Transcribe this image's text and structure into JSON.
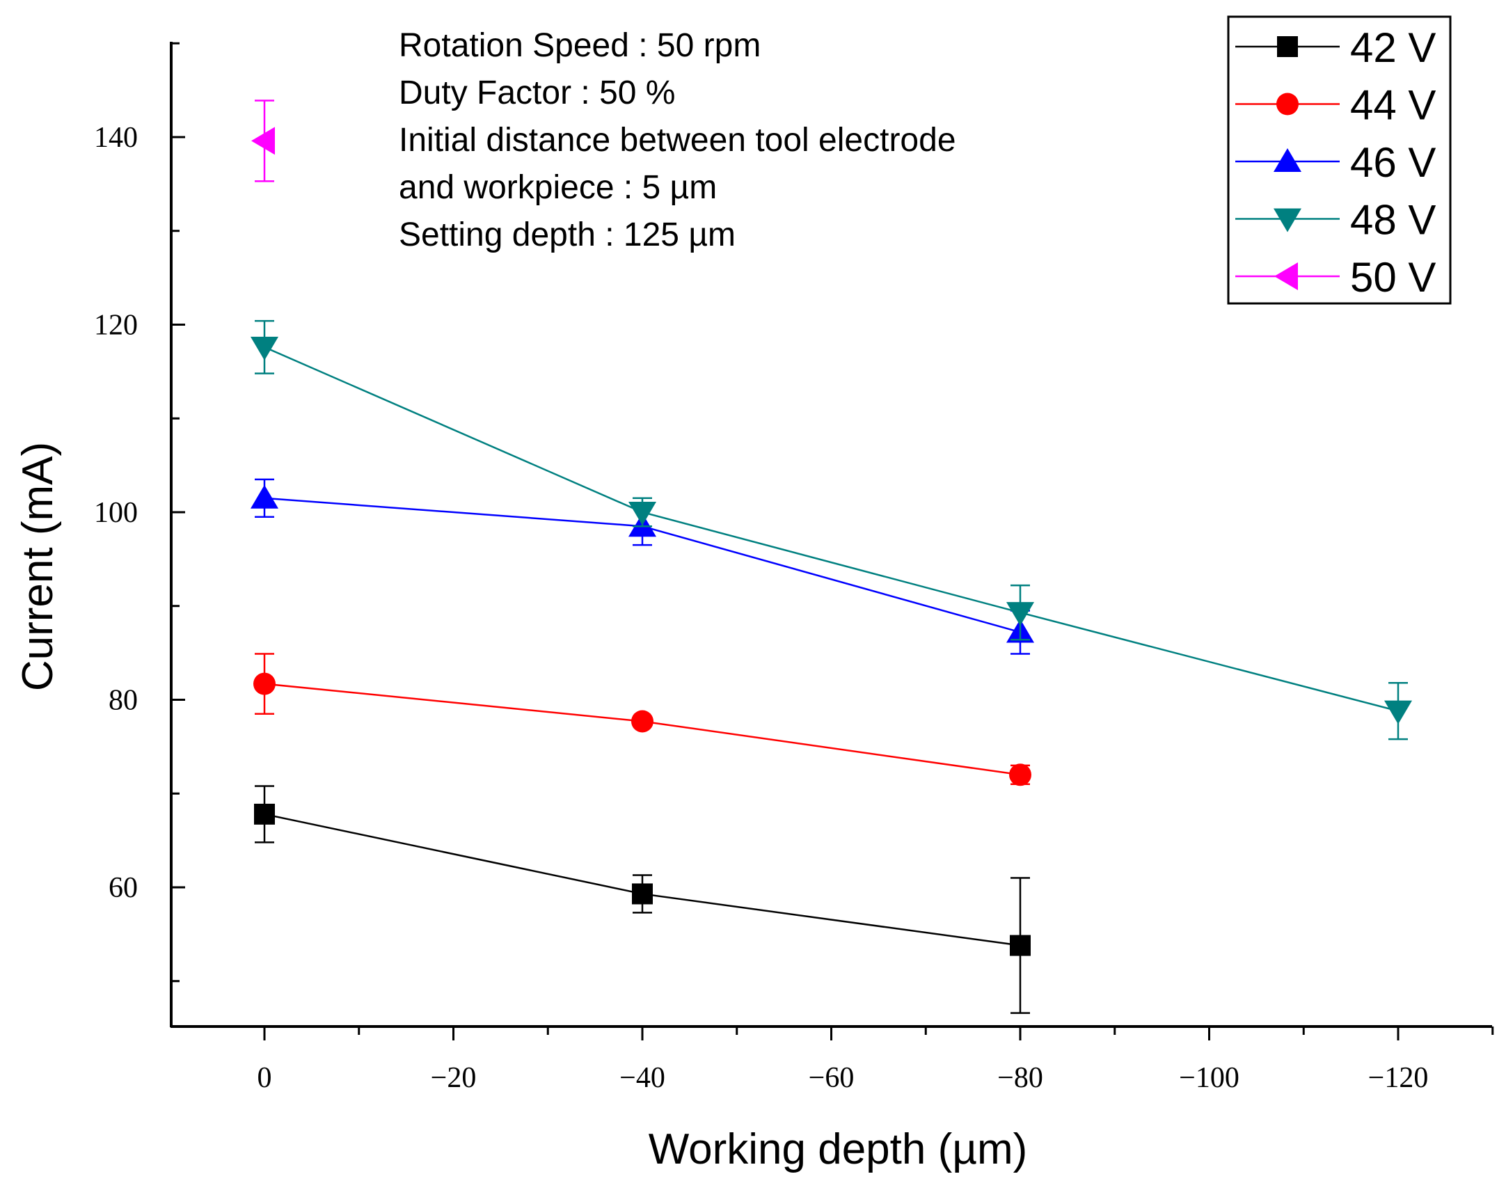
{
  "chart_data": {
    "type": "line",
    "title": "",
    "xlabel": "Working depth (µm)",
    "ylabel": "Current (mA)",
    "xlim": [
      10,
      -130
    ],
    "ylim": [
      45,
      150
    ],
    "xticks": [
      0,
      -20,
      -40,
      -60,
      -80,
      -100,
      -120
    ],
    "xtick_labels": [
      "0",
      "−20",
      "−40",
      "−60",
      "−80",
      "−100",
      "−120"
    ],
    "yticks": [
      60,
      80,
      100,
      120,
      140
    ],
    "ytick_labels": [
      "60",
      "80",
      "100",
      "120",
      "140"
    ],
    "grid": false,
    "legend_position": "top-right",
    "annotations": [
      "Rotation Speed : 50 rpm",
      "Duty Factor : 50 %",
      "Initial distance between tool electrode",
      "and workpiece : 5 µm",
      "Setting depth : 125 µm"
    ],
    "series": [
      {
        "name": "42 V",
        "color": "#000000",
        "marker": "square",
        "x": [
          0,
          -40,
          -80
        ],
        "y": [
          67.8,
          59.3,
          53.8
        ],
        "err_up": [
          3.0,
          2.0,
          7.2
        ],
        "err_down": [
          3.0,
          2.0,
          7.2
        ]
      },
      {
        "name": "44 V",
        "color": "#ff0000",
        "marker": "circle",
        "x": [
          0,
          -40,
          -80
        ],
        "y": [
          81.7,
          77.7,
          72.0
        ],
        "err_up": [
          3.2,
          0.5,
          1.0
        ],
        "err_down": [
          3.2,
          0.5,
          1.0
        ]
      },
      {
        "name": "46 V",
        "color": "#0000ff",
        "marker": "triangle-up",
        "x": [
          0,
          -40,
          -80
        ],
        "y": [
          101.5,
          98.5,
          87.2
        ],
        "err_up": [
          2.0,
          2.0,
          2.3
        ],
        "err_down": [
          2.0,
          2.0,
          2.3
        ]
      },
      {
        "name": "48 V",
        "color": "#008080",
        "marker": "triangle-down",
        "x": [
          0,
          -40,
          -80,
          -120
        ],
        "y": [
          117.6,
          100.0,
          89.3,
          78.8
        ],
        "err_up": [
          2.8,
          1.5,
          2.9,
          3.0
        ],
        "err_down": [
          2.8,
          1.5,
          2.9,
          3.0
        ]
      },
      {
        "name": "50 V",
        "color": "#ff00ff",
        "marker": "triangle-left",
        "x": [
          0
        ],
        "y": [
          139.6
        ],
        "err_up": [
          4.3
        ],
        "err_down": [
          4.3
        ]
      }
    ]
  }
}
